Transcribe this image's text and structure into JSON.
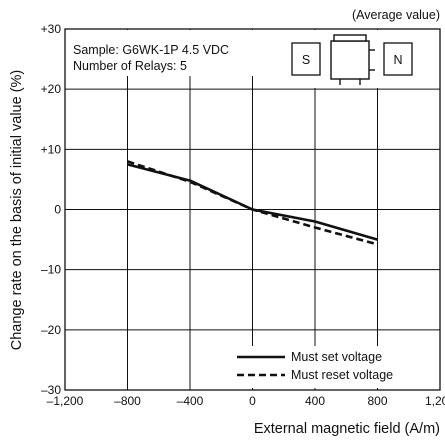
{
  "chart_data": {
    "type": "line",
    "note": "(Average value)",
    "xlabel": "External magnetic field (A/m)",
    "ylabel": "Change rate on the basis of initial value (%)",
    "xlim": [
      -1200,
      1200
    ],
    "ylim": [
      -30,
      30
    ],
    "x_ticks": [
      "–1,200",
      "–800",
      "–400",
      "0",
      "400",
      "800",
      "1,200"
    ],
    "x_tick_values": [
      -1200,
      -800,
      -400,
      0,
      400,
      800,
      1200
    ],
    "y_ticks": [
      "+30",
      "+20",
      "+10",
      "0",
      "–10",
      "–20",
      "–30"
    ],
    "y_tick_values": [
      30,
      20,
      10,
      0,
      -10,
      -20,
      -30
    ],
    "grid": true,
    "legend_position": "bottom-right",
    "sample_text": [
      "Sample: G6WK-1P 4.5 VDC",
      "Number of Relays: 5"
    ],
    "magnet_labels": {
      "south": "S",
      "north": "N"
    },
    "series": [
      {
        "name": "Must set voltage",
        "style": "solid",
        "x": [
          -800,
          -400,
          0,
          400,
          800
        ],
        "y": [
          7.5,
          4.8,
          0,
          -2.0,
          -5.0
        ]
      },
      {
        "name": "Must reset voltage",
        "style": "dashed",
        "x": [
          -800,
          -400,
          0,
          400,
          800
        ],
        "y": [
          8.0,
          4.6,
          0,
          -3.0,
          -5.8
        ]
      }
    ]
  }
}
